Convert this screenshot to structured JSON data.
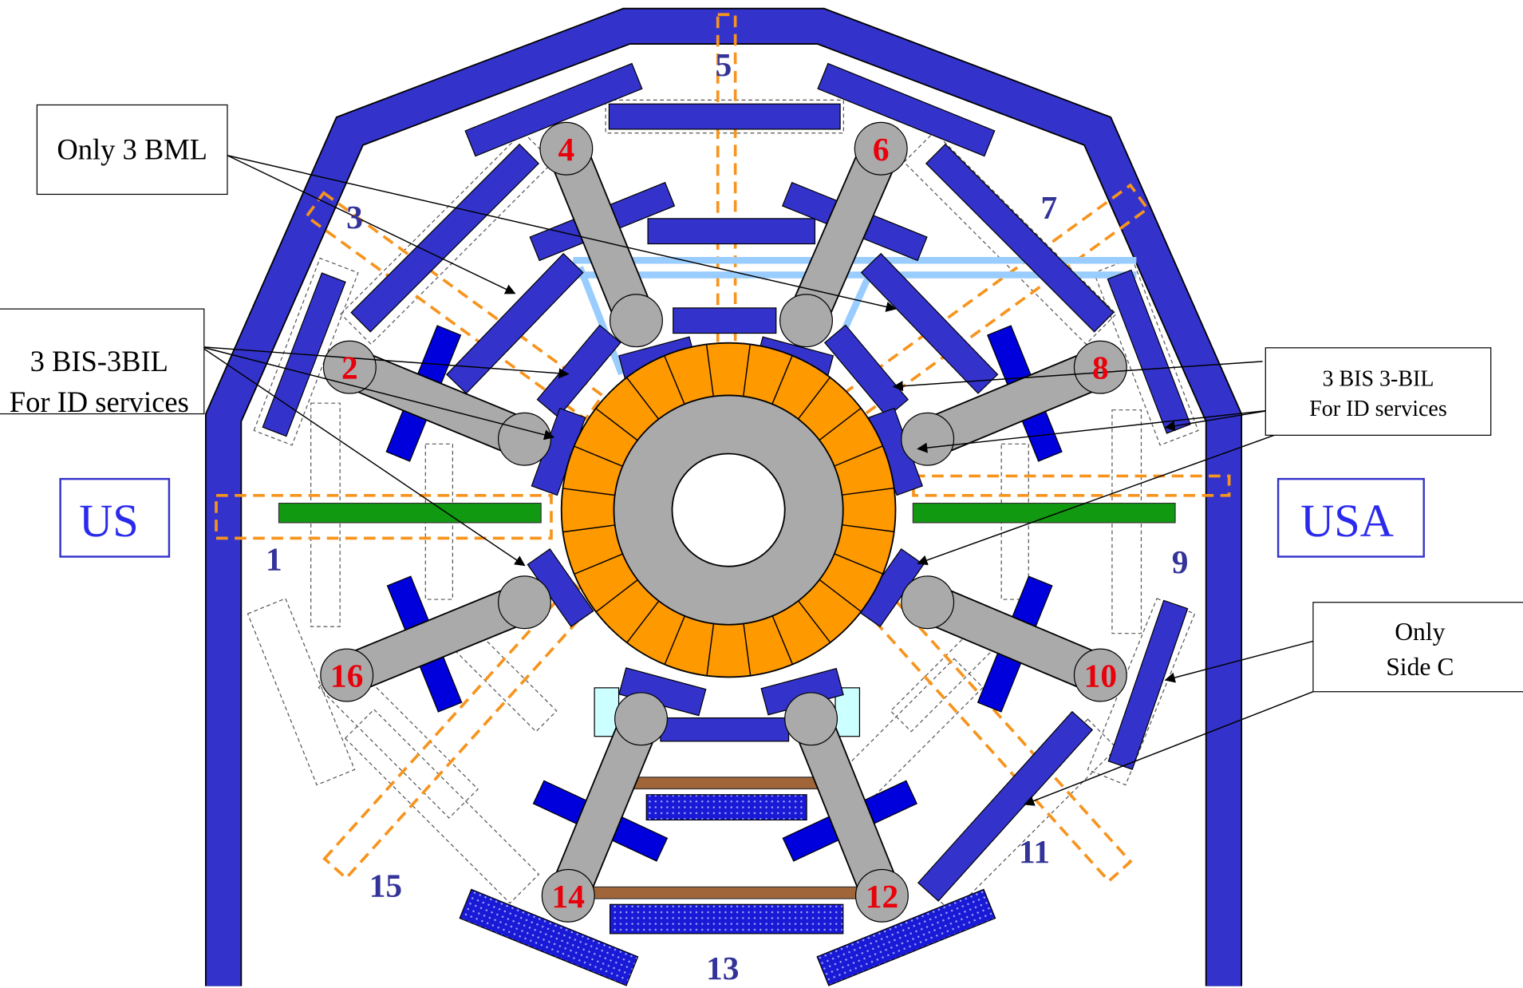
{
  "callouts": [
    {
      "lines": [
        "Only 3 BML"
      ]
    },
    {
      "lines": [
        "3 BIS-3BIL",
        "For ID services"
      ]
    },
    {
      "lines": [
        "3 BIS 3-BIL",
        "For ID services"
      ]
    },
    {
      "lines": [
        "Only",
        "Side C"
      ]
    }
  ],
  "sides": [
    "US",
    "USA"
  ],
  "sectors": [
    "1",
    "3",
    "5",
    "7",
    "9",
    "11",
    "13",
    "15"
  ],
  "stations": [
    "2",
    "4",
    "6",
    "8",
    "10",
    "12",
    "14",
    "16"
  ]
}
